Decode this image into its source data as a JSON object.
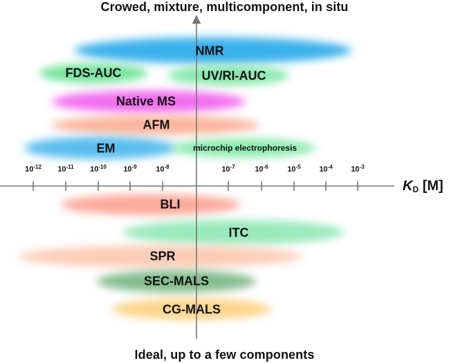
{
  "top_caption": "Crowed, mixture, multicomponent, in situ",
  "bottom_caption": "Ideal, up to a few components",
  "axis": {
    "symbol": "K",
    "subscript": "D",
    "unit": "[M]",
    "ticks": [
      {
        "base": "10",
        "exp": "-12"
      },
      {
        "base": "10",
        "exp": "-11"
      },
      {
        "base": "10",
        "exp": "-10"
      },
      {
        "base": "10",
        "exp": "-9"
      },
      {
        "base": "10",
        "exp": "-8"
      },
      {
        "base": "10",
        "exp": "-7"
      },
      {
        "base": "10",
        "exp": "-6"
      },
      {
        "base": "10",
        "exp": "-5"
      },
      {
        "base": "10",
        "exp": "-4"
      },
      {
        "base": "10",
        "exp": "-3"
      }
    ]
  },
  "techniques": [
    {
      "key": "nmr",
      "label": "NMR",
      "color": "#1aa3e8"
    },
    {
      "key": "fds-auc",
      "label": "FDS-AUC",
      "color": "#5ee08c"
    },
    {
      "key": "uv-ri-auc",
      "label": "UV/RI-AUC",
      "color": "#72e49b"
    },
    {
      "key": "native-ms",
      "label": "Native MS",
      "color": "#ee55ec"
    },
    {
      "key": "afm",
      "label": "AFM",
      "color": "#fba88c"
    },
    {
      "key": "em",
      "label": "EM",
      "color": "#3cb1ec"
    },
    {
      "key": "microchip",
      "label": "microchip electrophoresis",
      "color": "#7ce8a4"
    },
    {
      "key": "bli",
      "label": "BLI",
      "color": "#fb9a88"
    },
    {
      "key": "itc",
      "label": "ITC",
      "color": "#88e6b0"
    },
    {
      "key": "spr",
      "label": "SPR",
      "color": "#fcc4aa"
    },
    {
      "key": "sec-mals",
      "label": "SEC-MALS",
      "color": "#6fb27a"
    },
    {
      "key": "cg-mals",
      "label": "CG-MALS",
      "color": "#fbcf78"
    }
  ]
}
